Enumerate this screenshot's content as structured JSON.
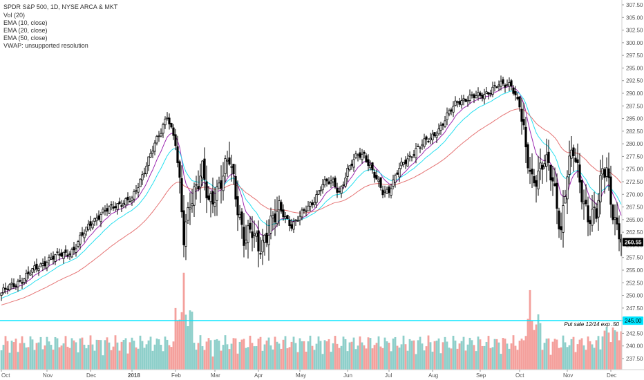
{
  "legend": {
    "title": "SPDR S&P 500, 1D, NYSE ARCA & MKT",
    "lines": [
      "Vol (20)",
      "EMA (10, close)",
      "EMA (20, close)",
      "EMA (50, close)",
      "VWAP: unsupported resolution"
    ]
  },
  "price_tag": "260.55",
  "alert": {
    "price_label": "245.00",
    "annotation": "Put sale 12/14 exp .50"
  },
  "colors": {
    "up": "#000000",
    "down": "#000000",
    "vol_up": "#8ecfca",
    "vol_down": "#f4a09c",
    "ema10": "#9c27b0",
    "ema20": "#26e0f0",
    "ema50": "#e57373",
    "alert_line": "#00e5ff",
    "price_tag_bg": "#000000",
    "price_tag_fg": "#ffffff"
  },
  "chart_data": {
    "type": "candlestick",
    "ylim": [
      235.0,
      310.0
    ],
    "y_ticks": [
      "307.50",
      "305.00",
      "302.50",
      "300.00",
      "297.50",
      "295.00",
      "292.50",
      "290.00",
      "287.50",
      "285.00",
      "282.50",
      "280.00",
      "277.50",
      "275.00",
      "272.50",
      "270.00",
      "267.50",
      "265.00",
      "262.50",
      "260.00",
      "257.50",
      "255.00",
      "252.50",
      "250.00",
      "247.50",
      "245.00",
      "242.50",
      "240.00",
      "237.50"
    ],
    "x_ticks": [
      {
        "label": "Oct",
        "idx": 0
      },
      {
        "label": "Nov",
        "idx": 22
      },
      {
        "label": "Dec",
        "idx": 43
      },
      {
        "label": "2018",
        "idx": 63,
        "bold": true
      },
      {
        "label": "Feb",
        "idx": 84
      },
      {
        "label": "Mar",
        "idx": 103
      },
      {
        "label": "Apr",
        "idx": 124
      },
      {
        "label": "May",
        "idx": 144
      },
      {
        "label": "Jun",
        "idx": 167
      },
      {
        "label": "Jul",
        "idx": 187
      },
      {
        "label": "Aug",
        "idx": 208
      },
      {
        "label": "Sep",
        "idx": 231
      },
      {
        "label": "Oct",
        "idx": 250
      },
      {
        "label": "Nov",
        "idx": 273
      },
      {
        "label": "Dec",
        "idx": 294
      }
    ],
    "n_bars": 300,
    "anchors": [
      [
        0,
        250.5
      ],
      [
        10,
        253.2
      ],
      [
        22,
        257.0
      ],
      [
        35,
        259.0
      ],
      [
        43,
        264.5
      ],
      [
        55,
        268.0
      ],
      [
        63,
        268.8
      ],
      [
        70,
        276.0
      ],
      [
        77,
        282.5
      ],
      [
        80,
        286.0
      ],
      [
        84,
        280.0
      ],
      [
        87,
        266.0
      ],
      [
        88,
        261.0
      ],
      [
        91,
        269.5
      ],
      [
        97,
        274.0
      ],
      [
        100,
        268.0
      ],
      [
        103,
        270.5
      ],
      [
        110,
        276.5
      ],
      [
        113,
        270.0
      ],
      [
        117,
        262.0
      ],
      [
        121,
        262.0
      ],
      [
        124,
        259.0
      ],
      [
        130,
        264.5
      ],
      [
        135,
        266.5
      ],
      [
        140,
        264.0
      ],
      [
        144,
        265.5
      ],
      [
        150,
        268.5
      ],
      [
        155,
        272.0
      ],
      [
        160,
        272.5
      ],
      [
        163,
        270.5
      ],
      [
        167,
        274.5
      ],
      [
        172,
        278.0
      ],
      [
        175,
        278.0
      ],
      [
        180,
        273.5
      ],
      [
        184,
        270.5
      ],
      [
        187,
        271.0
      ],
      [
        192,
        275.0
      ],
      [
        200,
        279.0
      ],
      [
        207,
        281.0
      ],
      [
        212,
        283.5
      ],
      [
        220,
        288.5
      ],
      [
        225,
        289.0
      ],
      [
        231,
        289.5
      ],
      [
        240,
        291.5
      ],
      [
        246,
        292.0
      ],
      [
        248,
        289.5
      ],
      [
        250,
        287.5
      ],
      [
        253,
        278.0
      ],
      [
        256,
        273.0
      ],
      [
        262,
        276.5
      ],
      [
        266,
        272.5
      ],
      [
        270,
        263.5
      ],
      [
        273,
        274.5
      ],
      [
        276,
        278.0
      ],
      [
        279,
        272.5
      ],
      [
        283,
        266.0
      ],
      [
        287,
        265.5
      ],
      [
        290,
        274.5
      ],
      [
        292,
        276.0
      ],
      [
        294,
        269.5
      ],
      [
        297,
        262.5
      ],
      [
        299,
        260.55
      ]
    ],
    "volume_bars": 300,
    "volume_max_label_price": 245.0
  }
}
